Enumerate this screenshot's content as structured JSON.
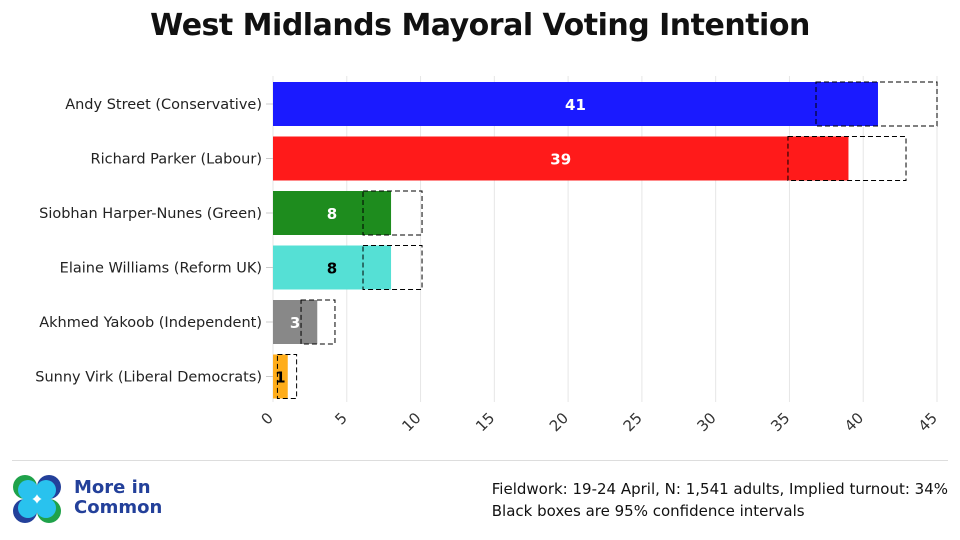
{
  "chart_data": {
    "type": "bar",
    "orientation": "horizontal",
    "title": "West Midlands Mayoral Voting Intention",
    "categories": [
      "Andy Street (Conservative)",
      "Richard Parker (Labour)",
      "Siobhan Harper-Nunes (Green)",
      "Elaine Williams (Reform UK)",
      "Akhmed Yakoob (Independent)",
      "Sunny Virk (Liberal Democrats)"
    ],
    "values": [
      41,
      39,
      8,
      8,
      3,
      1
    ],
    "confidence_intervals": [
      [
        36.8,
        45
      ],
      [
        34.9,
        42.9
      ],
      [
        6.1,
        10.1
      ],
      [
        6.1,
        10.1
      ],
      [
        1.9,
        4.2
      ],
      [
        0.3,
        1.6
      ]
    ],
    "colors": [
      "#1a1aff",
      "#ff1a1a",
      "#1e8c1e",
      "#55e0d5",
      "#888888",
      "#ffad1a"
    ],
    "label_colors": [
      "#ffffff",
      "#ffffff",
      "#ffffff",
      "#000000",
      "#ffffff",
      "#000000"
    ],
    "xlim": [
      0,
      45
    ],
    "xticks": [
      0,
      5,
      10,
      15,
      20,
      25,
      30,
      35,
      40,
      45
    ],
    "grid": true,
    "xlabel": "",
    "ylabel": ""
  },
  "brand": {
    "line1": "More in",
    "line2": "Common"
  },
  "notes": {
    "line1": "Fieldwork: 19-24 April, N: 1,541 adults, Implied turnout: 34%",
    "line2": "Black boxes are 95% confidence intervals"
  }
}
